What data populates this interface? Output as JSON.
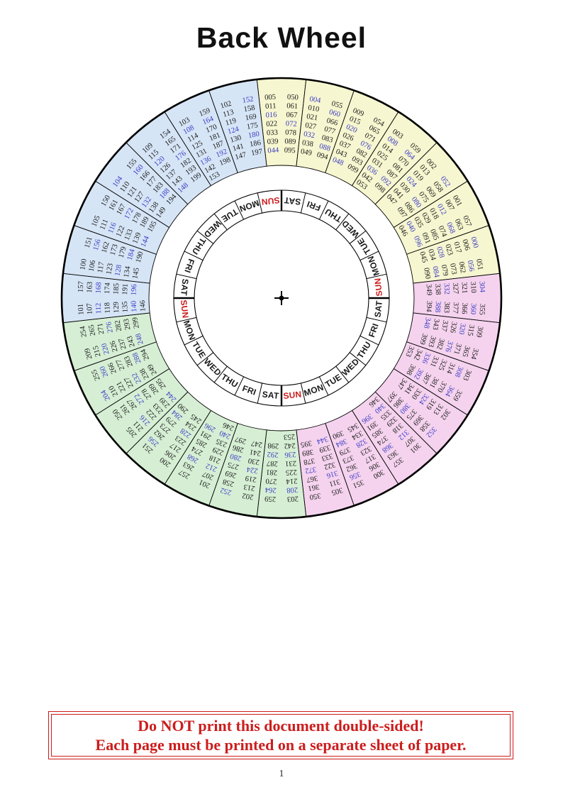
{
  "page": {
    "title": "Back Wheel",
    "page_number": "1"
  },
  "warning_box": {
    "line1": "Do NOT print this document double-sided!",
    "line2": "Each page must be printed on a separate sheet of paper."
  },
  "wheel": {
    "quadrant_colors": {
      "yellow": "#f6f6d0",
      "pink": "#f5d3ee",
      "green": "#d6efd4",
      "blue": "#d6e5f6"
    },
    "ink": {
      "number": "#1a1a1a",
      "highlight": "#3b3bc4",
      "day": "#1a1a1a",
      "sunday": "#cc1d1d",
      "line": "#000000"
    },
    "highlight_rule": {
      "multiple_of": 4,
      "exceptions": [
        "100",
        "200",
        "300"
      ]
    },
    "day_ring": {
      "sequence_clockwise_from_top": [
        "SAT",
        "FRI",
        "THU",
        "WED",
        "TUE",
        "MON",
        "SUN"
      ],
      "repeats": 4,
      "red_day": "SUN"
    },
    "sectors_clockwise_from_top": [
      {
        "quadrant": "yellow",
        "col1": [
          "005",
          "011",
          "016",
          "022",
          "033",
          "039",
          "044"
        ],
        "col2": [
          "050",
          "061",
          "067",
          "072",
          "078",
          "089",
          "095"
        ]
      },
      {
        "quadrant": "yellow",
        "col1": [
          "004",
          "010",
          "021",
          "027",
          "032",
          "038",
          "049"
        ],
        "col2": [
          "055",
          "060",
          "066",
          "077",
          "083",
          "088",
          "094"
        ]
      },
      {
        "quadrant": "yellow",
        "col1": [
          "009",
          "015",
          "020",
          "026",
          "037",
          "043",
          "048"
        ],
        "col2": [
          "054",
          "065",
          "071",
          "076",
          "082",
          "093",
          "099"
        ]
      },
      {
        "quadrant": "yellow",
        "col1": [
          "003",
          "008",
          "014",
          "025",
          "031",
          "036",
          "042",
          "053"
        ],
        "col2": [
          "059",
          "064",
          "070",
          "081",
          "087",
          "092",
          "098"
        ]
      },
      {
        "quadrant": "yellow",
        "col1": [
          "002",
          "013",
          "019",
          "024",
          "030",
          "041",
          "047"
        ],
        "col2": [
          "052",
          "058",
          "069",
          "075",
          "080",
          "086",
          "097"
        ]
      },
      {
        "quadrant": "yellow",
        "col1": [
          "001",
          "007",
          "012",
          "018",
          "029",
          "035",
          "040",
          "046"
        ],
        "col2": [
          "057",
          "063",
          "068",
          "074",
          "085",
          "091",
          "096"
        ]
      },
      {
        "quadrant": "yellow",
        "col1": [
          "000",
          "006",
          "017",
          "023",
          "028",
          "034",
          "045"
        ],
        "col2": [
          "051",
          "056",
          "062",
          "073",
          "079",
          "084",
          "090"
        ]
      },
      {
        "quadrant": "pink",
        "col1": [
          "304",
          "310",
          "321",
          "327",
          "332",
          "338",
          "349"
        ],
        "col2": [
          "355",
          "360",
          "366",
          "377",
          "383",
          "388",
          "394"
        ]
      },
      {
        "quadrant": "pink",
        "col1": [
          "309",
          "315",
          "320",
          "326",
          "337",
          "343",
          "348"
        ],
        "col2": [
          "354",
          "365",
          "371",
          "376",
          "382",
          "393",
          "399"
        ]
      },
      {
        "quadrant": "pink",
        "col1": [
          "303",
          "308",
          "314",
          "325",
          "331",
          "336",
          "342",
          "353"
        ],
        "col2": [
          "359",
          "364",
          "370",
          "381",
          "387",
          "392",
          "398"
        ]
      },
      {
        "quadrant": "pink",
        "col1": [
          "302",
          "313",
          "319",
          "324",
          "330",
          "341",
          "347"
        ],
        "col2": [
          "352",
          "358",
          "369",
          "375",
          "380",
          "386",
          "397"
        ]
      },
      {
        "quadrant": "pink",
        "col1": [
          "301",
          "307",
          "312",
          "318",
          "329",
          "335",
          "340",
          "346"
        ],
        "col2": [
          "357",
          "363",
          "368",
          "374",
          "385",
          "391",
          "396"
        ]
      },
      {
        "quadrant": "pink",
        "col1": [
          "300",
          "306",
          "317",
          "323",
          "328",
          "334",
          "345"
        ],
        "col2": [
          "351",
          "356",
          "362",
          "373",
          "379",
          "384",
          "390"
        ]
      },
      {
        "quadrant": "pink",
        "col1": [
          "305",
          "311",
          "316",
          "322",
          "333",
          "339",
          "344"
        ],
        "col2": [
          "350",
          "361",
          "367",
          "372",
          "378",
          "389",
          "395"
        ]
      },
      {
        "quadrant": "green",
        "col1": [
          "203",
          "208",
          "214",
          "225",
          "231",
          "236",
          "242",
          "253"
        ],
        "col2": [
          "259",
          "264",
          "270",
          "281",
          "287",
          "292",
          "298"
        ]
      },
      {
        "quadrant": "green",
        "col1": [
          "202",
          "213",
          "219",
          "224",
          "230",
          "241",
          "247"
        ],
        "col2": [
          "252",
          "258",
          "269",
          "275",
          "280",
          "286",
          "297"
        ]
      },
      {
        "quadrant": "green",
        "col1": [
          "201",
          "207",
          "212",
          "218",
          "229",
          "235",
          "240",
          "246"
        ],
        "col2": [
          "257",
          "263",
          "268",
          "274",
          "285",
          "291",
          "296"
        ]
      },
      {
        "quadrant": "green",
        "col1": [
          "200",
          "206",
          "217",
          "223",
          "228",
          "234",
          "245"
        ],
        "col2": [
          "251",
          "256",
          "262",
          "273",
          "279",
          "284",
          "290"
        ]
      },
      {
        "quadrant": "green",
        "col1": [
          "205",
          "211",
          "216",
          "222",
          "233",
          "239",
          "244"
        ],
        "col2": [
          "250",
          "261",
          "267",
          "272",
          "278",
          "289",
          "295"
        ]
      },
      {
        "quadrant": "green",
        "col1": [
          "204",
          "210",
          "221",
          "227",
          "232",
          "238",
          "249"
        ],
        "col2": [
          "255",
          "260",
          "266",
          "277",
          "283",
          "288",
          "294"
        ]
      },
      {
        "quadrant": "green",
        "col1": [
          "209",
          "215",
          "220",
          "226",
          "237",
          "243",
          "248"
        ],
        "col2": [
          "254",
          "265",
          "271",
          "276",
          "282",
          "293",
          "299"
        ]
      },
      {
        "quadrant": "blue",
        "col1": [
          "101",
          "107",
          "112",
          "118",
          "129",
          "135",
          "140",
          "146"
        ],
        "col2": [
          "157",
          "163",
          "168",
          "174",
          "185",
          "191",
          "196"
        ]
      },
      {
        "quadrant": "blue",
        "col1": [
          "100",
          "106",
          "117",
          "123",
          "128",
          "134",
          "145"
        ],
        "col2": [
          "151",
          "156",
          "162",
          "173",
          "179",
          "184",
          "190"
        ]
      },
      {
        "quadrant": "blue",
        "col1": [
          "105",
          "111",
          "116",
          "122",
          "133",
          "139",
          "144"
        ],
        "col2": [
          "150",
          "161",
          "167",
          "172",
          "178",
          "189",
          "195"
        ]
      },
      {
        "quadrant": "blue",
        "col1": [
          "104",
          "110",
          "121",
          "127",
          "132",
          "138",
          "149"
        ],
        "col2": [
          "155",
          "160",
          "166",
          "177",
          "183",
          "188",
          "194"
        ]
      },
      {
        "quadrant": "blue",
        "col1": [
          "109",
          "115",
          "120",
          "126",
          "137",
          "143",
          "148"
        ],
        "col2": [
          "154",
          "165",
          "171",
          "176",
          "182",
          "193",
          "199"
        ]
      },
      {
        "quadrant": "blue",
        "col1": [
          "103",
          "108",
          "114",
          "125",
          "131",
          "136",
          "142",
          "153"
        ],
        "col2": [
          "159",
          "164",
          "170",
          "181",
          "187",
          "192",
          "198"
        ]
      },
      {
        "quadrant": "blue",
        "col1": [
          "102",
          "113",
          "119",
          "124",
          "130",
          "141",
          "147"
        ],
        "col2": [
          "152",
          "158",
          "169",
          "175",
          "180",
          "186",
          "197"
        ]
      }
    ]
  }
}
